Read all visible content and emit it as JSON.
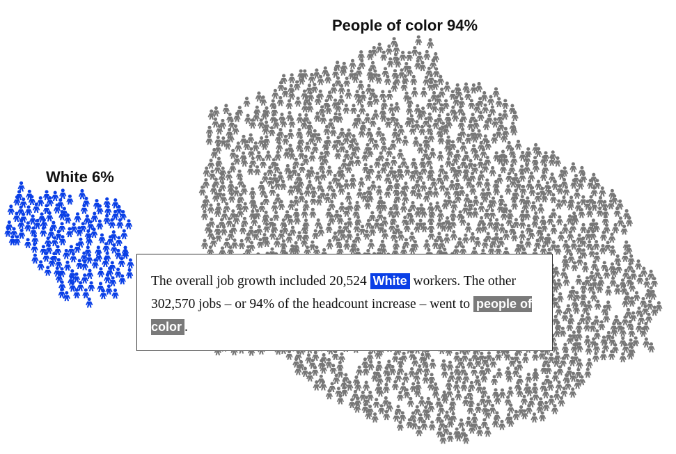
{
  "colors": {
    "white_group": "#0a3fe6",
    "poc_group": "#777777",
    "text": "#111111"
  },
  "icon": "person-icon",
  "groups": {
    "people_of_color": {
      "label": "People of color 94%",
      "percent": 94
    },
    "white": {
      "label": "White 6%",
      "percent": 6
    }
  },
  "note": {
    "part1": "The overall job growth included 20,524 ",
    "highlight_white": "White",
    "part2": " workers. The other 302,570 jobs – or 94% of the headcount increase – went to ",
    "highlight_poc": "people of color",
    "part3": "."
  }
}
